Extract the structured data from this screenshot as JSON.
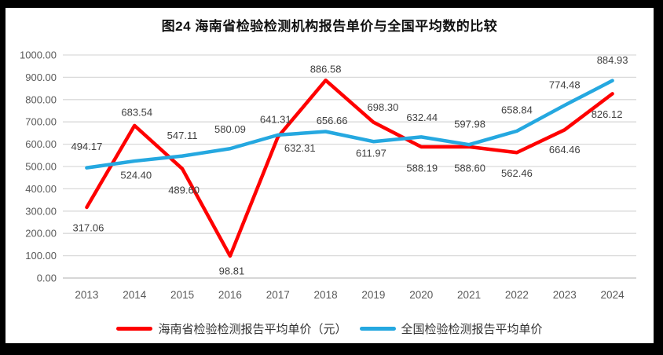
{
  "title": "图24  海南省检验检测机构报告单价与全国平均数的比较",
  "chart_data": {
    "type": "line",
    "title": "图24  海南省检验检测机构报告单价与全国平均数的比较",
    "categories": [
      "2013",
      "2014",
      "2015",
      "2016",
      "2017",
      "2018",
      "2019",
      "2020",
      "2021",
      "2022",
      "2023",
      "2024"
    ],
    "series": [
      {
        "name": "海南省检验检测报告平均单价（元）",
        "color": "#FE0000",
        "values": [
          317.06,
          683.54,
          489.6,
          98.81,
          632.31,
          886.58,
          698.3,
          588.19,
          588.6,
          562.46,
          664.46,
          826.12
        ],
        "label_positions": [
          "below",
          "above",
          "below",
          "below",
          "below",
          "above",
          "above",
          "below",
          "below",
          "below",
          "below",
          "below"
        ],
        "label_dx": [
          2,
          3,
          2,
          2,
          28,
          0,
          12,
          1,
          1,
          0,
          0,
          -7
        ],
        "label_dy": [
          26,
          -17,
          27,
          19,
          14,
          -14,
          -19,
          27,
          27,
          26,
          25,
          26
        ]
      },
      {
        "name": "全国检验检测报告平均单价",
        "color": "#25A8E0",
        "values": [
          494.17,
          524.4,
          547.11,
          580.09,
          641.31,
          656.66,
          611.97,
          632.44,
          597.98,
          658.84,
          774.48,
          884.93
        ],
        "label_positions": [
          "above",
          "below",
          "above",
          "above",
          "above",
          "above",
          "below",
          "above",
          "above",
          "above",
          "above",
          "above"
        ],
        "label_dx": [
          0,
          2,
          0,
          0,
          -3,
          8,
          -3,
          1,
          1,
          0,
          0,
          0
        ],
        "label_dy": [
          -27,
          18,
          -26,
          -25,
          -20,
          -14,
          15,
          -25,
          -26,
          -27,
          -26,
          -26
        ]
      }
    ],
    "ylim": [
      0,
      1000
    ],
    "yticks": [
      0,
      100,
      200,
      300,
      400,
      500,
      600,
      700,
      800,
      900,
      1000
    ],
    "ytick_labels": [
      "0.00",
      "100.00",
      "200.00",
      "300.00",
      "400.00",
      "500.00",
      "600.00",
      "700.00",
      "800.00",
      "900.00",
      "1000.00"
    ],
    "value_decimals": 2,
    "grid": true,
    "legend_position": "bottom",
    "colors": {
      "gridline": "#D9D9D9",
      "axis_line": "#BFBFBF",
      "axis_text": "#595959",
      "data_label_text": "#404040"
    }
  }
}
